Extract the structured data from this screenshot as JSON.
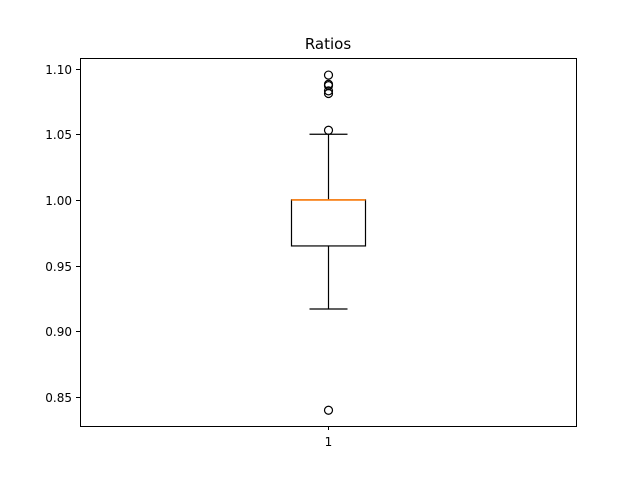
{
  "chart_data": {
    "type": "boxplot",
    "title": "Ratios",
    "xlabel": "",
    "ylabel": "",
    "categories": [
      "1"
    ],
    "ylim": [
      0.828,
      1.108
    ],
    "yticks": [
      0.85,
      0.9,
      0.95,
      1.0,
      1.05,
      1.1
    ],
    "ytick_labels": [
      "0.85",
      "0.90",
      "0.95",
      "1.00",
      "1.05",
      "1.10"
    ],
    "grid": false,
    "legend": "none",
    "boxes": [
      {
        "category": "1",
        "whisker_low": 0.917,
        "q1": 0.965,
        "median": 1.0,
        "q3": 1.0,
        "whisker_high": 1.05,
        "outliers": [
          0.84,
          1.053,
          1.081,
          1.083,
          1.087,
          1.088,
          1.095
        ]
      }
    ],
    "colors": {
      "box": "#000000",
      "median": "#ff7f0e",
      "axes": "#000000",
      "text": "#000000"
    }
  }
}
